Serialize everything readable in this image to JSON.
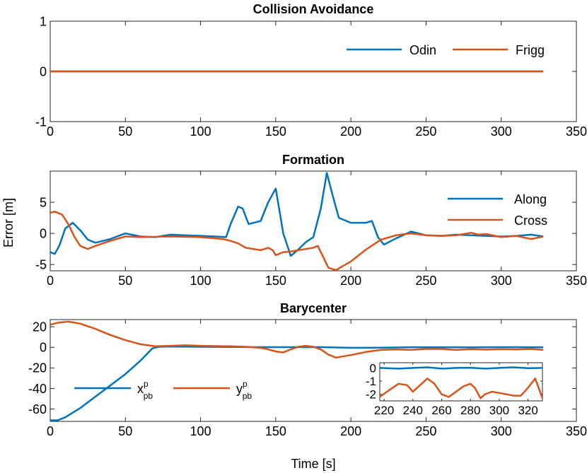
{
  "colors": {
    "blue": "#0072BD",
    "orange": "#D95319"
  },
  "xlabel": "Time [s]",
  "ylabel": "Error [m]",
  "chart_data": [
    {
      "type": "line",
      "title": "Collision Avoidance",
      "xlim": [
        0,
        350
      ],
      "ylim": [
        -1,
        1
      ],
      "xticks": [
        0,
        50,
        100,
        150,
        200,
        250,
        300,
        350
      ],
      "yticks": [
        -1,
        0,
        1
      ],
      "legend": {
        "placement": "top-right",
        "layout": "horizontal"
      },
      "series": [
        {
          "name": "Odin",
          "color": "#0072BD",
          "x": [
            0,
            328
          ],
          "y": [
            0,
            0
          ]
        },
        {
          "name": "Frigg",
          "color": "#D95319",
          "x": [
            0,
            328
          ],
          "y": [
            0,
            0
          ]
        }
      ]
    },
    {
      "type": "line",
      "title": "Formation",
      "xlim": [
        0,
        350
      ],
      "ylim": [
        -6,
        10
      ],
      "xticks": [
        0,
        50,
        100,
        150,
        200,
        250,
        300,
        350
      ],
      "yticks": [
        -5,
        0,
        5
      ],
      "legend": {
        "placement": "right",
        "layout": "vertical"
      },
      "series": [
        {
          "name": "Along",
          "color": "#0072BD",
          "x": [
            0,
            3,
            6,
            10,
            15,
            20,
            25,
            30,
            40,
            50,
            60,
            70,
            80,
            90,
            100,
            110,
            117,
            120,
            125,
            128,
            132,
            140,
            145,
            150,
            155,
            160,
            165,
            170,
            175,
            180,
            184,
            188,
            192,
            200,
            210,
            214,
            218,
            222,
            230,
            240,
            250,
            260,
            270,
            280,
            290,
            300,
            310,
            320,
            328
          ],
          "y": [
            -3.0,
            -3.3,
            -2.0,
            0.8,
            1.7,
            0.5,
            -1.0,
            -1.5,
            -0.9,
            0.0,
            -0.5,
            -0.6,
            -0.2,
            -0.3,
            -0.4,
            -0.5,
            -0.6,
            1.5,
            4.3,
            4.0,
            1.5,
            2.0,
            5.0,
            7.2,
            0.0,
            -3.6,
            -2.6,
            -1.4,
            -0.6,
            4.0,
            9.7,
            6.0,
            2.5,
            1.7,
            1.7,
            2.0,
            -0.6,
            -1.8,
            -0.8,
            0.3,
            -0.3,
            -0.4,
            -0.2,
            -0.3,
            -0.4,
            -0.5,
            -0.4,
            -0.2,
            -0.5
          ]
        },
        {
          "name": "Cross",
          "color": "#D95319",
          "x": [
            0,
            3,
            8,
            12,
            16,
            20,
            25,
            30,
            40,
            50,
            60,
            80,
            100,
            115,
            120,
            125,
            130,
            140,
            145,
            148,
            150,
            155,
            160,
            165,
            170,
            175,
            178,
            180,
            185,
            190,
            200,
            210,
            220,
            230,
            240,
            250,
            260,
            270,
            280,
            285,
            290,
            300,
            310,
            320,
            328
          ],
          "y": [
            3.3,
            3.5,
            3.0,
            1.5,
            -0.5,
            -2.0,
            -2.5,
            -2.0,
            -1.2,
            -0.5,
            -0.6,
            -0.5,
            -0.6,
            -0.9,
            -1.2,
            -1.6,
            -2.3,
            -2.7,
            -2.3,
            -2.7,
            -3.5,
            -3.0,
            -2.9,
            -2.7,
            -2.5,
            -2.3,
            -2.0,
            -3.0,
            -5.5,
            -5.9,
            -4.5,
            -2.6,
            -1.0,
            -0.3,
            0.0,
            -0.3,
            -0.4,
            -0.3,
            0.1,
            -0.2,
            -0.1,
            -0.6,
            -0.4,
            -0.9,
            -0.5
          ]
        }
      ]
    },
    {
      "type": "line",
      "title": "Barycenter",
      "xlim": [
        0,
        350
      ],
      "ylim": [
        -72,
        27
      ],
      "xticks": [
        0,
        50,
        100,
        150,
        200,
        250,
        300,
        350
      ],
      "yticks": [
        -60,
        -40,
        -20,
        0,
        20
      ],
      "legend": {
        "placement": "bottom-left",
        "layout": "horizontal"
      },
      "series": [
        {
          "name": "x",
          "sub": "pb",
          "sup": "p",
          "color": "#0072BD",
          "x": [
            0,
            5,
            10,
            20,
            30,
            40,
            50,
            60,
            68,
            72,
            80,
            100,
            120,
            140,
            160,
            180,
            200,
            220,
            240,
            260,
            280,
            300,
            328
          ],
          "y": [
            -71,
            -71,
            -68,
            -59,
            -48,
            -37,
            -26,
            -13,
            -1,
            0.5,
            0.8,
            0.5,
            0.3,
            0.2,
            0.2,
            0.2,
            -0.4,
            -0.3,
            0.1,
            0.1,
            0.0,
            0.2,
            0.1
          ]
        },
        {
          "name": "y",
          "sub": "pb",
          "sup": "p",
          "color": "#D95319",
          "x": [
            0,
            5,
            12,
            20,
            30,
            40,
            50,
            60,
            70,
            80,
            90,
            100,
            110,
            120,
            130,
            140,
            145,
            150,
            155,
            160,
            165,
            170,
            175,
            180,
            185,
            190,
            200,
            210,
            220,
            230,
            240,
            250,
            260,
            270,
            280,
            290,
            300,
            310,
            320,
            328
          ],
          "y": [
            22,
            24,
            25,
            23,
            18,
            12,
            7,
            3,
            1.0,
            1.5,
            2.0,
            1.5,
            1.2,
            1.0,
            0.5,
            -0.5,
            -2.0,
            -4.0,
            -5.0,
            -2.0,
            0.5,
            1.5,
            0.5,
            -2.0,
            -7.0,
            -10.0,
            -7.5,
            -4.5,
            -2.5,
            -2.0,
            -2.5,
            -1.5,
            -1.5,
            -2.5,
            -1.8,
            -2.2,
            -1.8,
            -2.0,
            -1.5,
            -2.5
          ]
        }
      ],
      "inset": {
        "xlim": [
          217,
          330
        ],
        "ylim": [
          -2.5,
          0.4
        ],
        "xticks": [
          220,
          240,
          260,
          280,
          300,
          320
        ],
        "yticks": [
          -2,
          -1,
          0
        ],
        "series": [
          {
            "name": "x",
            "color": "#0072BD",
            "x": [
              217,
              230,
              240,
              250,
              260,
              270,
              280,
              290,
              300,
              310,
              320,
              330
            ],
            "y": [
              0.0,
              -0.05,
              0.0,
              0.05,
              -0.05,
              0.0,
              0.02,
              -0.05,
              0.0,
              0.05,
              -0.02,
              0.0
            ]
          },
          {
            "name": "y",
            "color": "#D95319",
            "x": [
              217,
              222,
              230,
              236,
              240,
              245,
              250,
              255,
              260,
              265,
              270,
              275,
              280,
              283,
              287,
              290,
              295,
              300,
              305,
              310,
              315,
              320,
              325,
              330
            ],
            "y": [
              -2.2,
              -1.8,
              -1.2,
              -1.3,
              -1.8,
              -1.3,
              -0.8,
              -1.2,
              -2.0,
              -2.2,
              -1.8,
              -1.4,
              -1.2,
              -1.5,
              -2.3,
              -2.0,
              -1.8,
              -1.9,
              -2.0,
              -2.1,
              -2.1,
              -1.5,
              -0.8,
              -2.3
            ]
          }
        ]
      }
    }
  ]
}
